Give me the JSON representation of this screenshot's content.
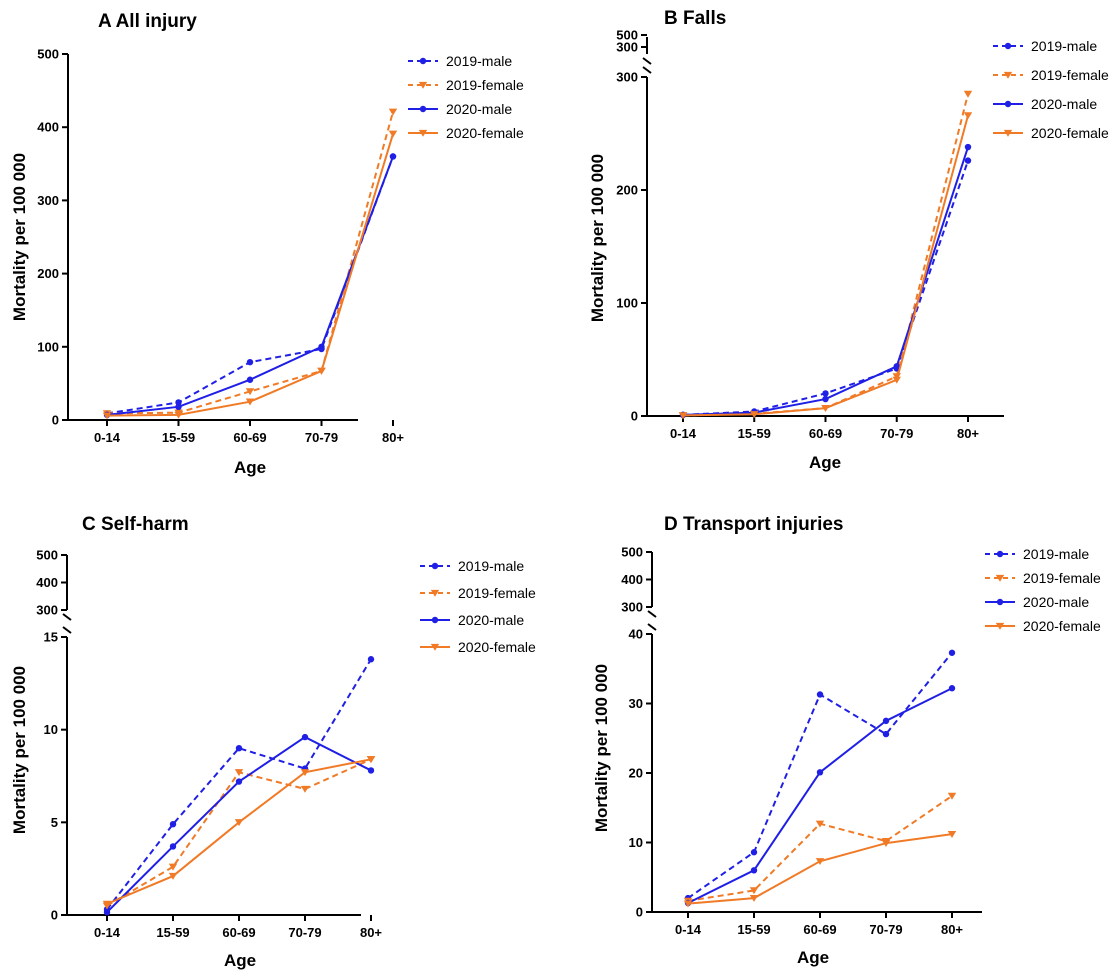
{
  "colors": {
    "male": "#1f1fe6",
    "female": "#f07a26",
    "axis": "#000000",
    "background": "#ffffff"
  },
  "chart_data": [
    {
      "type": "line",
      "title": "A  All injury",
      "xlabel": "Age",
      "ylabel": "Mortality per 100 000",
      "categories": [
        "0-14",
        "15-59",
        "60-69",
        "70-79",
        "80+"
      ],
      "y_ticks": [
        0,
        100,
        200,
        300,
        400,
        500
      ],
      "ylim": [
        0,
        500
      ],
      "axis_break": null,
      "legend_position": "top-right",
      "series": [
        {
          "name": "2019-male",
          "sex": "male",
          "style": "dashed",
          "marker": "circle",
          "values": [
            9,
            24,
            79,
            97,
            360
          ]
        },
        {
          "name": "2019-female",
          "sex": "female",
          "style": "dashed",
          "marker": "triangle-down",
          "values": [
            9,
            10,
            39,
            67,
            421
          ]
        },
        {
          "name": "2020-male",
          "sex": "male",
          "style": "solid",
          "marker": "circle",
          "values": [
            7,
            18,
            55,
            100,
            360
          ]
        },
        {
          "name": "2020-female",
          "sex": "female",
          "style": "solid",
          "marker": "triangle-down",
          "values": [
            6,
            7,
            25,
            67,
            391
          ]
        }
      ]
    },
    {
      "type": "line",
      "title": "B  Falls",
      "xlabel": "Age",
      "ylabel": "Mortality per 100 000",
      "categories": [
        "0-14",
        "15-59",
        "60-69",
        "70-79",
        "80+"
      ],
      "y_ticks": [
        0,
        100,
        200,
        300
      ],
      "ylim": [
        0,
        300
      ],
      "axis_break": {
        "upper_ticks": [
          300,
          500
        ]
      },
      "legend_position": "top-right",
      "series": [
        {
          "name": "2019-male",
          "sex": "male",
          "style": "dashed",
          "marker": "circle",
          "values": [
            1,
            4,
            20,
            42,
            226
          ]
        },
        {
          "name": "2019-female",
          "sex": "female",
          "style": "dashed",
          "marker": "triangle-down",
          "values": [
            0.5,
            2,
            7,
            35,
            285
          ]
        },
        {
          "name": "2020-male",
          "sex": "male",
          "style": "solid",
          "marker": "circle",
          "values": [
            1,
            3,
            15,
            44,
            238
          ]
        },
        {
          "name": "2020-female",
          "sex": "female",
          "style": "solid",
          "marker": "triangle-down",
          "values": [
            0.5,
            1.5,
            7,
            32,
            266
          ]
        }
      ]
    },
    {
      "type": "line",
      "title": "C  Self-harm",
      "xlabel": "Age",
      "ylabel": "Mortality per 100 000",
      "categories": [
        "0-14",
        "15-59",
        "60-69",
        "70-79",
        "80+"
      ],
      "y_ticks": [
        0,
        5,
        10,
        15
      ],
      "ylim": [
        0,
        15
      ],
      "axis_break": {
        "upper_ticks": [
          300,
          400,
          500
        ]
      },
      "legend_position": "top-right",
      "series": [
        {
          "name": "2019-male",
          "sex": "male",
          "style": "dashed",
          "marker": "circle",
          "values": [
            0.3,
            4.9,
            9.0,
            7.9,
            13.8
          ]
        },
        {
          "name": "2019-female",
          "sex": "female",
          "style": "dashed",
          "marker": "triangle-down",
          "values": [
            0.5,
            2.6,
            7.7,
            6.8,
            8.4
          ]
        },
        {
          "name": "2020-male",
          "sex": "male",
          "style": "solid",
          "marker": "circle",
          "values": [
            0.15,
            3.7,
            7.2,
            9.6,
            7.8
          ]
        },
        {
          "name": "2020-female",
          "sex": "female",
          "style": "solid",
          "marker": "triangle-down",
          "values": [
            0.6,
            2.1,
            5.0,
            7.7,
            8.4
          ]
        }
      ]
    },
    {
      "type": "line",
      "title": "D  Transport injuries",
      "xlabel": "Age",
      "ylabel": "Mortality per 100 000",
      "categories": [
        "0-14",
        "15-59",
        "60-69",
        "70-79",
        "80+"
      ],
      "y_ticks": [
        0,
        10,
        20,
        30,
        40
      ],
      "ylim": [
        0,
        40
      ],
      "axis_break": {
        "upper_ticks": [
          300,
          400,
          500
        ]
      },
      "legend_position": "top-right",
      "series": [
        {
          "name": "2019-male",
          "sex": "male",
          "style": "dashed",
          "marker": "circle",
          "values": [
            2.0,
            8.6,
            31.3,
            25.6,
            37.3
          ]
        },
        {
          "name": "2019-female",
          "sex": "female",
          "style": "dashed",
          "marker": "triangle-down",
          "values": [
            1.6,
            3.1,
            12.7,
            10.2,
            16.7
          ]
        },
        {
          "name": "2020-male",
          "sex": "male",
          "style": "solid",
          "marker": "circle",
          "values": [
            1.3,
            6.0,
            20.1,
            27.5,
            32.2
          ]
        },
        {
          "name": "2020-female",
          "sex": "female",
          "style": "solid",
          "marker": "triangle-down",
          "values": [
            1.2,
            2.0,
            7.3,
            9.9,
            11.2
          ]
        }
      ]
    }
  ]
}
